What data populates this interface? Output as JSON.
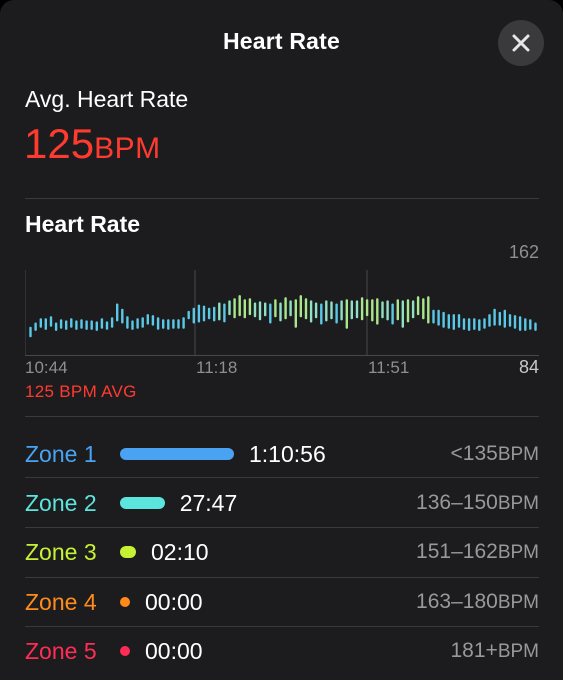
{
  "header": {
    "title": "Heart Rate",
    "close_icon": "close-icon"
  },
  "summary": {
    "avg_label": "Avg. Heart Rate",
    "avg_value": "125",
    "avg_unit": "BPM",
    "accent_color": "#ff3b30"
  },
  "chart_section": {
    "heading": "Heart Rate",
    "y_max_label": "162",
    "y_min_label": "84",
    "x_ticks": [
      "10:44",
      "11:18",
      "11:51"
    ],
    "avg_caption": "125 BPM AVG"
  },
  "chart_data": {
    "type": "bar",
    "ylim": [
      84,
      162
    ],
    "xlabel": "",
    "ylabel": "",
    "x_ticks": [
      "10:44",
      "11:18",
      "11:51"
    ],
    "series": [
      {
        "values": [
          [
            100,
            110
          ],
          [
            106,
            114
          ],
          [
            109,
            118
          ],
          [
            107,
            118
          ],
          [
            110,
            120
          ],
          [
            106,
            114
          ],
          [
            108,
            117
          ],
          [
            107,
            116
          ],
          [
            109,
            118
          ],
          [
            107,
            116
          ],
          [
            108,
            117
          ],
          [
            107,
            116
          ],
          [
            107,
            116
          ],
          [
            106,
            115
          ],
          [
            108,
            118
          ],
          [
            107,
            115
          ],
          [
            109,
            119
          ],
          [
            115,
            132
          ],
          [
            113,
            127
          ],
          [
            108,
            120
          ],
          [
            107,
            116
          ],
          [
            108,
            118
          ],
          [
            109,
            119
          ],
          [
            112,
            122
          ],
          [
            111,
            121
          ],
          [
            107,
            119
          ],
          [
            108,
            117
          ],
          [
            107,
            117
          ],
          [
            108,
            117
          ],
          [
            108,
            117
          ],
          [
            108,
            119
          ],
          [
            117,
            125
          ],
          [
            113,
            128
          ],
          [
            114,
            131
          ],
          [
            115,
            130
          ],
          [
            117,
            128
          ],
          [
            115,
            129
          ],
          [
            116,
            133
          ],
          [
            114,
            132
          ],
          [
            121,
            135
          ],
          [
            118,
            137
          ],
          [
            120,
            140
          ],
          [
            118,
            136
          ],
          [
            121,
            137
          ],
          [
            119,
            133
          ],
          [
            116,
            134
          ],
          [
            120,
            133
          ],
          [
            113,
            132
          ],
          [
            119,
            136
          ],
          [
            115,
            133
          ],
          [
            117,
            138
          ],
          [
            120,
            135
          ],
          [
            109,
            136
          ],
          [
            119,
            140
          ],
          [
            117,
            137
          ],
          [
            114,
            135
          ],
          [
            118,
            133
          ],
          [
            112,
            132
          ],
          [
            115,
            135
          ],
          [
            117,
            134
          ],
          [
            113,
            132
          ],
          [
            116,
            135
          ],
          [
            108,
            136
          ],
          [
            117,
            135
          ],
          [
            118,
            135
          ],
          [
            116,
            138
          ],
          [
            120,
            136
          ],
          [
            115,
            136
          ],
          [
            112,
            137
          ],
          [
            118,
            134
          ],
          [
            116,
            135
          ],
          [
            112,
            132
          ],
          [
            116,
            136
          ],
          [
            109,
            135
          ],
          [
            114,
            136
          ],
          [
            118,
            135
          ],
          [
            121,
            139
          ],
          [
            117,
            137
          ],
          [
            113,
            139
          ],
          [
            113,
            126
          ],
          [
            111,
            126
          ],
          [
            109,
            124
          ],
          [
            108,
            122
          ],
          [
            107,
            122
          ],
          [
            109,
            122
          ],
          [
            107,
            118
          ],
          [
            106,
            118
          ],
          [
            107,
            118
          ],
          [
            106,
            117
          ],
          [
            108,
            118
          ],
          [
            110,
            122
          ],
          [
            111,
            127
          ],
          [
            111,
            124
          ],
          [
            109,
            126
          ],
          [
            110,
            122
          ],
          [
            108,
            121
          ],
          [
            106,
            120
          ],
          [
            106,
            118
          ],
          [
            107,
            117
          ],
          [
            106,
            114
          ]
        ]
      }
    ]
  },
  "zones": [
    {
      "name": "Zone 1",
      "time": "1:10:56",
      "range": "<135",
      "unit": "BPM",
      "color": "#4aa3f2",
      "fraction": 1.0
    },
    {
      "name": "Zone 2",
      "time": "27:47",
      "range": "136–150",
      "unit": "BPM",
      "color": "#5ce5dc",
      "fraction": 0.392
    },
    {
      "name": "Zone 3",
      "time": "02:10",
      "range": "151–162",
      "unit": "BPM",
      "color": "#c6f135",
      "fraction": 0.031
    },
    {
      "name": "Zone 4",
      "time": "00:00",
      "range": "163–180",
      "unit": "BPM",
      "color": "#ff8c1a",
      "fraction": 0
    },
    {
      "name": "Zone 5",
      "time": "00:00",
      "range": "181+",
      "unit": "BPM",
      "color": "#ff2d55",
      "fraction": 0
    }
  ]
}
